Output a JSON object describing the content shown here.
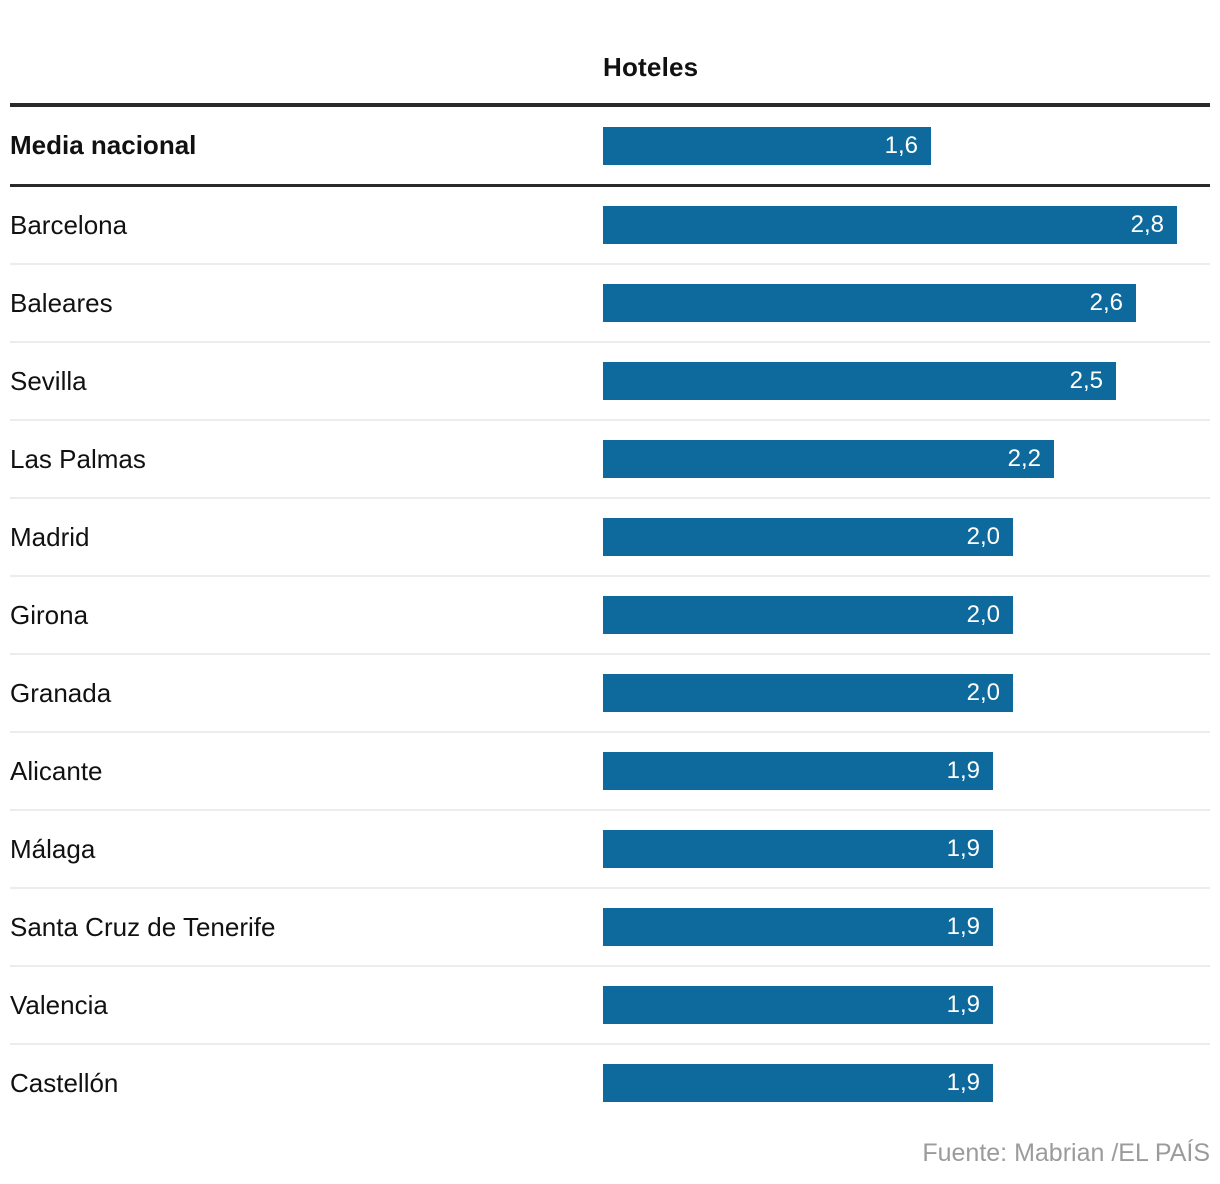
{
  "chart_data": {
    "type": "bar",
    "orientation": "horizontal",
    "title": "Hoteles",
    "xlabel": "",
    "ylabel": "",
    "xlim": [
      0,
      2.8
    ],
    "grid": false,
    "value_labels_inside_bars": true,
    "decimal_separator": ",",
    "highlight": {
      "label": "Media nacional",
      "value": 1.6,
      "display": "1,6"
    },
    "rows": [
      {
        "label": "Barcelona",
        "value": 2.8,
        "display": "2,8"
      },
      {
        "label": "Baleares",
        "value": 2.6,
        "display": "2,6"
      },
      {
        "label": "Sevilla",
        "value": 2.5,
        "display": "2,5"
      },
      {
        "label": "Las Palmas",
        "value": 2.2,
        "display": "2,2"
      },
      {
        "label": "Madrid",
        "value": 2.0,
        "display": "2,0"
      },
      {
        "label": "Girona",
        "value": 2.0,
        "display": "2,0"
      },
      {
        "label": "Granada",
        "value": 2.0,
        "display": "2,0"
      },
      {
        "label": "Alicante",
        "value": 1.9,
        "display": "1,9"
      },
      {
        "label": "Málaga",
        "value": 1.9,
        "display": "1,9"
      },
      {
        "label": "Santa Cruz de Tenerife",
        "value": 1.9,
        "display": "1,9"
      },
      {
        "label": "Valencia",
        "value": 1.9,
        "display": "1,9"
      },
      {
        "label": "Castellón",
        "value": 1.9,
        "display": "1,9"
      }
    ],
    "source": "Fuente: Mabrian /EL PAÍS",
    "colors": {
      "bar": "#0e6a9c",
      "bar_value_text": "#ffffff",
      "label_text": "#111111",
      "strong_rule": "#2a2a2a",
      "row_separator": "#ececec",
      "source_text": "#9b9b9b"
    }
  }
}
